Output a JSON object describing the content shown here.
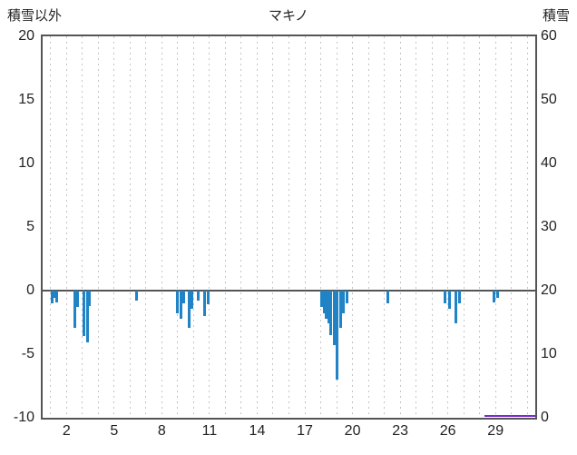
{
  "header": {
    "left_axis_title": "積雪以外",
    "chart_title": "マキノ",
    "right_axis_title": "積雪"
  },
  "chart_data": {
    "type": "bar",
    "title": "マキノ",
    "left_axis": {
      "label": "積雪以外",
      "min": -10,
      "max": 20,
      "ticks": [
        20,
        15,
        10,
        5,
        0,
        -5,
        -10
      ]
    },
    "right_axis": {
      "label": "積雪",
      "min": 0,
      "max": 60,
      "ticks": [
        60,
        50,
        40,
        30,
        20,
        10,
        0
      ]
    },
    "x_axis": {
      "min": 0.5,
      "max": 31.5,
      "grid_day_start": 1,
      "grid_day_end": 31,
      "tick_labels": [
        2,
        5,
        8,
        11,
        14,
        17,
        20,
        23,
        26,
        29
      ]
    },
    "grid": {
      "style": "dashed",
      "color": "#c4c4c4",
      "vertical_only": true
    },
    "frame_color": "#555555",
    "bar_color": "#1f83c6",
    "bars": [
      {
        "d": 1.1,
        "v": -1.0
      },
      {
        "d": 1.25,
        "v": -0.6
      },
      {
        "d": 1.4,
        "v": -0.9
      },
      {
        "d": 2.55,
        "v": -2.9
      },
      {
        "d": 2.7,
        "v": -1.3
      },
      {
        "d": 3.1,
        "v": -3.6
      },
      {
        "d": 3.3,
        "v": -4.1
      },
      {
        "d": 3.45,
        "v": -1.2
      },
      {
        "d": 6.4,
        "v": -0.8
      },
      {
        "d": 9.0,
        "v": -1.8
      },
      {
        "d": 9.2,
        "v": -2.2
      },
      {
        "d": 9.4,
        "v": -1.0
      },
      {
        "d": 9.7,
        "v": -2.9
      },
      {
        "d": 9.9,
        "v": -1.4
      },
      {
        "d": 10.3,
        "v": -0.8
      },
      {
        "d": 10.7,
        "v": -2.0
      },
      {
        "d": 10.9,
        "v": -1.1
      },
      {
        "d": 18.05,
        "v": -1.3
      },
      {
        "d": 18.2,
        "v": -1.8
      },
      {
        "d": 18.35,
        "v": -2.2
      },
      {
        "d": 18.5,
        "v": -2.6
      },
      {
        "d": 18.65,
        "v": -3.5
      },
      {
        "d": 18.85,
        "v": -4.3
      },
      {
        "d": 19.05,
        "v": -7.0
      },
      {
        "d": 19.25,
        "v": -2.9
      },
      {
        "d": 19.45,
        "v": -1.8
      },
      {
        "d": 19.65,
        "v": -1.0
      },
      {
        "d": 22.2,
        "v": -1.0
      },
      {
        "d": 25.8,
        "v": -1.0
      },
      {
        "d": 26.1,
        "v": -1.4
      },
      {
        "d": 26.5,
        "v": -2.6
      },
      {
        "d": 26.75,
        "v": -1.0
      },
      {
        "d": 28.9,
        "v": -0.9
      },
      {
        "d": 29.15,
        "v": -0.6
      }
    ],
    "snow_line": {
      "start_day": 28.3,
      "end_day": 31.5,
      "value": 0,
      "color": "#7a2bd1"
    }
  }
}
